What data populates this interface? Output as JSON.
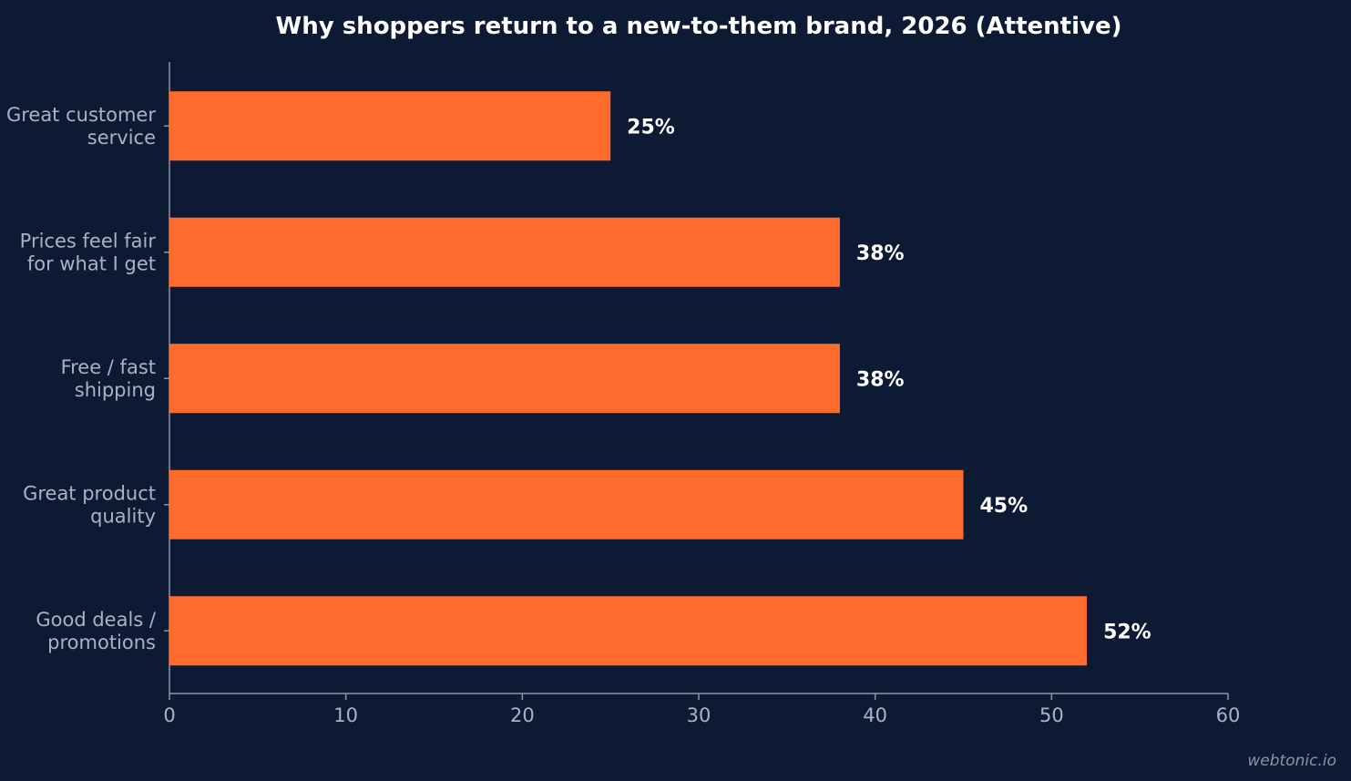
{
  "chart_data": {
    "type": "bar",
    "orientation": "horizontal",
    "title": "Why shoppers return to a new-to-them brand, 2026 (Attentive)",
    "categories": [
      [
        "Great customer",
        "service"
      ],
      [
        "Prices feel fair",
        "for what I get"
      ],
      [
        "Free / fast",
        "shipping"
      ],
      [
        "Great product",
        "quality"
      ],
      [
        "Good deals /",
        "promotions"
      ]
    ],
    "values": [
      25,
      38,
      38,
      45,
      52
    ],
    "value_labels": [
      "25%",
      "38%",
      "38%",
      "45%",
      "52%"
    ],
    "xlim": [
      0,
      60
    ],
    "xticks": [
      0,
      10,
      20,
      30,
      40,
      50,
      60
    ],
    "xlabel": "",
    "ylabel": "",
    "grid": false,
    "bar_color": "#ff6b2c",
    "background_color": "#0c1b33"
  },
  "footer": {
    "watermark": "webtonic.io"
  }
}
